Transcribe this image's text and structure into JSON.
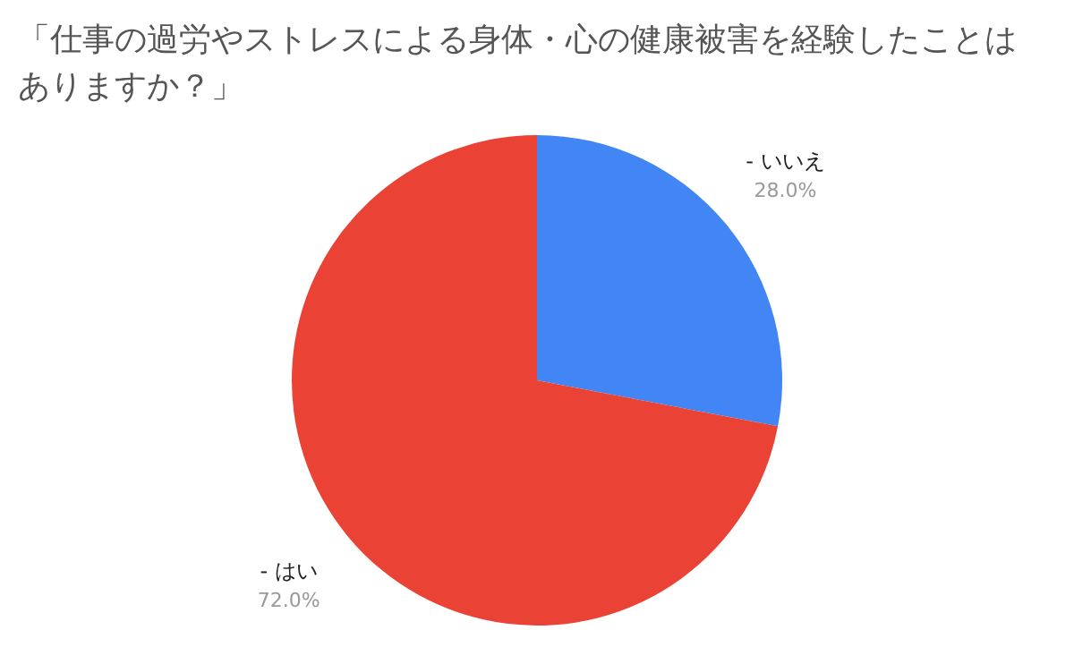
{
  "chart_data": {
    "type": "pie",
    "title": "「仕事の過労やストレスによる身体・心の健康被害を経験したことはありますか？」",
    "categories": [
      "- いいえ",
      "- はい"
    ],
    "values": [
      28,
      72
    ],
    "colors": [
      "#4285f4",
      "#ea4335"
    ],
    "value_labels": [
      "28.0%",
      "72.0%"
    ],
    "legend": false
  }
}
